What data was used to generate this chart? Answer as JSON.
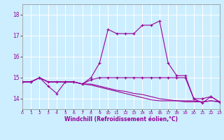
{
  "xlabel": "Windchill (Refroidissement éolien,°C)",
  "bg_color": "#cceeff",
  "line_color": "#990099",
  "xlim": [
    0,
    23
  ],
  "ylim": [
    13.5,
    18.5
  ],
  "yticks": [
    14,
    15,
    16,
    17,
    18
  ],
  "xticks": [
    0,
    1,
    2,
    3,
    4,
    5,
    6,
    7,
    8,
    9,
    10,
    11,
    12,
    13,
    14,
    15,
    16,
    17,
    18,
    19,
    20,
    21,
    22,
    23
  ],
  "series": {
    "line1_x": [
      0,
      1,
      2,
      3,
      4,
      5,
      6,
      7,
      8,
      9,
      10,
      11,
      12,
      13,
      14,
      15,
      16,
      17,
      18,
      19,
      20,
      21,
      22,
      23
    ],
    "line1_y": [
      14.8,
      14.8,
      15.0,
      14.8,
      14.8,
      14.8,
      14.8,
      14.7,
      14.9,
      15.0,
      15.0,
      15.0,
      15.0,
      15.0,
      15.0,
      15.0,
      15.0,
      15.0,
      15.0,
      15.0,
      14.0,
      14.0,
      14.1,
      13.85
    ],
    "line2_x": [
      0,
      1,
      2,
      3,
      4,
      5,
      6,
      7,
      8,
      9,
      10,
      11,
      12,
      13,
      14,
      15,
      16,
      17,
      18,
      19,
      20,
      21,
      22,
      23
    ],
    "line2_y": [
      14.8,
      14.8,
      15.0,
      14.6,
      14.25,
      14.8,
      14.8,
      14.7,
      15.0,
      15.7,
      17.3,
      17.1,
      17.1,
      17.1,
      17.5,
      17.5,
      17.7,
      15.7,
      15.1,
      15.1,
      14.0,
      13.8,
      14.1,
      13.85
    ],
    "line3_x": [
      0,
      1,
      2,
      3,
      4,
      5,
      6,
      7,
      8,
      9,
      10,
      11,
      12,
      13,
      14,
      15,
      16,
      17,
      18,
      19,
      20,
      21,
      22,
      23
    ],
    "line3_y": [
      14.8,
      14.8,
      15.0,
      14.8,
      14.8,
      14.8,
      14.8,
      14.7,
      14.7,
      14.6,
      14.5,
      14.4,
      14.35,
      14.25,
      14.2,
      14.1,
      14.0,
      13.95,
      13.9,
      13.9,
      13.9,
      13.85,
      13.9,
      13.85
    ],
    "line4_x": [
      0,
      1,
      2,
      3,
      4,
      5,
      6,
      7,
      8,
      9,
      10,
      11,
      12,
      13,
      14,
      15,
      16,
      17,
      18,
      19,
      20,
      21,
      22,
      23
    ],
    "line4_y": [
      14.8,
      14.8,
      15.0,
      14.8,
      14.8,
      14.8,
      14.8,
      14.7,
      14.65,
      14.55,
      14.45,
      14.35,
      14.25,
      14.15,
      14.05,
      13.95,
      13.9,
      13.9,
      13.9,
      13.85,
      13.85,
      13.85,
      13.9,
      13.85
    ]
  }
}
